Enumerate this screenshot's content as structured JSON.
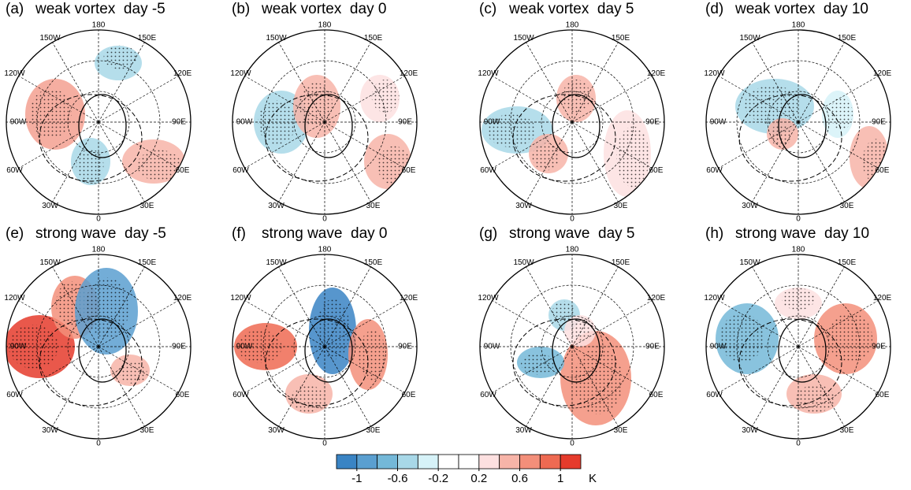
{
  "panels": [
    {
      "label": "(a)",
      "title": "weak vortex  day -5"
    },
    {
      "label": "(b)",
      "title": "weak vortex  day 0"
    },
    {
      "label": "(c)",
      "title": "weak vortex  day 5"
    },
    {
      "label": "(d)",
      "title": "weak vortex  day 10"
    },
    {
      "label": "(e)",
      "title": "strong wave  day -5"
    },
    {
      "label": "(f)",
      "title": "strong wave  day 0"
    },
    {
      "label": "(g)",
      "title": "strong wave  day 5"
    },
    {
      "label": "(h)",
      "title": "strong wave  day 10"
    }
  ],
  "longitude_labels": [
    {
      "lon": 180,
      "label": "180"
    },
    {
      "lon": 150,
      "label": "150E"
    },
    {
      "lon": 120,
      "label": "120E"
    },
    {
      "lon": 90,
      "label": "90E"
    },
    {
      "lon": 60,
      "label": "60E"
    },
    {
      "lon": 30,
      "label": "30E"
    },
    {
      "lon": 0,
      "label": "0"
    },
    {
      "lon": -30,
      "label": "30W"
    },
    {
      "lon": -60,
      "label": "60W"
    },
    {
      "lon": -90,
      "label": "90W"
    },
    {
      "lon": -120,
      "label": "120W"
    },
    {
      "lon": -150,
      "label": "150W"
    }
  ],
  "colorbar": {
    "lim": [
      -1.2,
      1.2
    ],
    "ticks": [
      -1,
      -0.6,
      -0.2,
      0.2,
      0.6,
      1
    ],
    "unit": "K",
    "colors": [
      "#3a84c4",
      "#5a9fd0",
      "#74b8d8",
      "#a8d8e8",
      "#d6f2f8",
      "#ffffff",
      "#ffffff",
      "#fde0e0",
      "#f7b4a8",
      "#f38f7a",
      "#ee6a52",
      "#e53b2c"
    ]
  }
}
